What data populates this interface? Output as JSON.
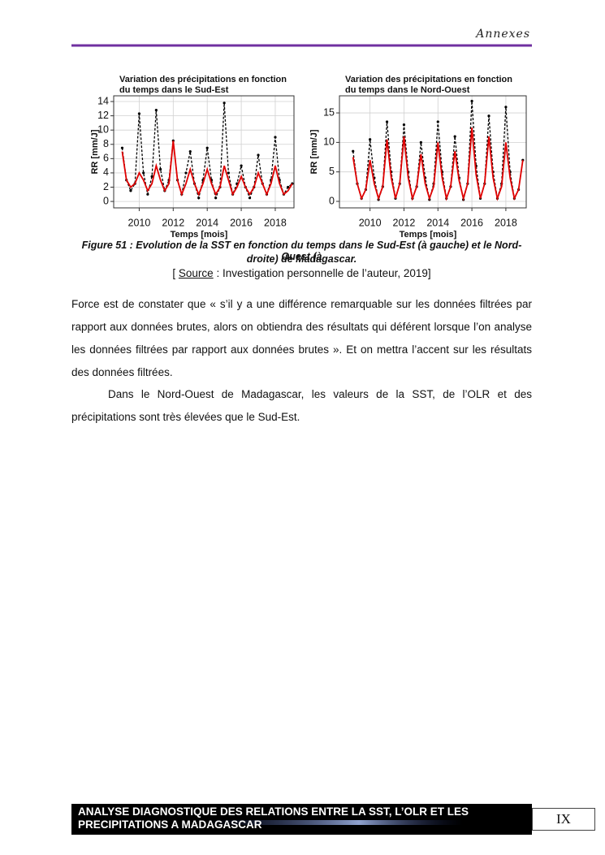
{
  "header": {
    "title": "Annexes"
  },
  "chart_data": [
    {
      "type": "line",
      "title": [
        "Variation des précipitations en fonction",
        "du temps dans le Sud-Est"
      ],
      "xlabel": "Temps [mois]",
      "ylabel": "RR [mm/J]",
      "x": [
        2009,
        2009.25,
        2009.5,
        2009.75,
        2010,
        2010.25,
        2010.5,
        2010.75,
        2011,
        2011.25,
        2011.5,
        2011.75,
        2012,
        2012.25,
        2012.5,
        2012.75,
        2013,
        2013.25,
        2013.5,
        2013.75,
        2014,
        2014.25,
        2014.5,
        2014.75,
        2015,
        2015.25,
        2015.5,
        2015.75,
        2016,
        2016.25,
        2016.5,
        2016.75,
        2017,
        2017.25,
        2017.5,
        2017.75,
        2018,
        2018.25,
        2018.5,
        2018.75,
        2019
      ],
      "series": [
        {
          "color": "#000000",
          "dashed": true,
          "marker": true,
          "values": [
            7.5,
            3,
            1.5,
            2.5,
            12.3,
            4,
            1,
            3.5,
            12.8,
            4.5,
            1.5,
            3,
            8.5,
            3,
            1,
            4,
            7,
            2.5,
            0.5,
            3,
            7.5,
            3,
            0.5,
            2,
            13.8,
            4,
            1,
            2.5,
            5,
            2,
            0.5,
            2,
            6.5,
            2.5,
            1,
            3,
            9,
            3,
            1,
            2,
            2.5
          ]
        },
        {
          "color": "#e00000",
          "dashed": false,
          "marker": false,
          "values": [
            7,
            3,
            2,
            2.5,
            4,
            3,
            1.5,
            2.5,
            5,
            3,
            1.5,
            2.5,
            8.5,
            3,
            1,
            2.5,
            4.5,
            2.5,
            1,
            2.5,
            4.5,
            2.5,
            1,
            2,
            5,
            3,
            1,
            2,
            3.5,
            2,
            1,
            2,
            4,
            2.5,
            1,
            2.5,
            5,
            2.5,
            1,
            1.5,
            2.5
          ]
        }
      ],
      "xlim": [
        2008.5,
        2019.1
      ],
      "xticks": [
        2010,
        2012,
        2014,
        2016,
        2018
      ],
      "ylim": [
        -0.9,
        14.8
      ],
      "yticks": [
        0,
        2,
        4,
        6,
        8,
        10,
        12,
        14
      ],
      "grid": true
    },
    {
      "type": "line",
      "title": [
        "Variation des précipitations en fonction",
        "du temps dans le Nord-Ouest"
      ],
      "xlabel": "Temps [mois]",
      "ylabel": "RR [mm/J]",
      "x": [
        2009,
        2009.25,
        2009.5,
        2009.75,
        2010,
        2010.25,
        2010.5,
        2010.75,
        2011,
        2011.25,
        2011.5,
        2011.75,
        2012,
        2012.25,
        2012.5,
        2012.75,
        2013,
        2013.25,
        2013.5,
        2013.75,
        2014,
        2014.25,
        2014.5,
        2014.75,
        2015,
        2015.25,
        2015.5,
        2015.75,
        2016,
        2016.25,
        2016.5,
        2016.75,
        2017,
        2017.25,
        2017.5,
        2017.75,
        2018,
        2018.25,
        2018.5,
        2018.75,
        2019
      ],
      "series": [
        {
          "color": "#000000",
          "dashed": true,
          "marker": true,
          "values": [
            8.5,
            3,
            0.5,
            2,
            10.5,
            4,
            0.3,
            2.5,
            13.5,
            5,
            0.5,
            3,
            13,
            5,
            0.5,
            2.5,
            10,
            4,
            0.3,
            3,
            13.5,
            5,
            0.5,
            2.5,
            11,
            4,
            0.3,
            3,
            17,
            6,
            0.5,
            3,
            14.5,
            5,
            0.5,
            3,
            16,
            5,
            0.5,
            2,
            7
          ]
        },
        {
          "color": "#e00000",
          "dashed": false,
          "marker": false,
          "values": [
            7.5,
            3,
            0.5,
            2,
            7,
            3,
            0.5,
            2.5,
            10.5,
            4,
            0.5,
            3,
            11,
            4,
            0.5,
            2.5,
            8,
            3,
            0.5,
            2.5,
            10,
            4,
            0.5,
            2.5,
            8.5,
            3.5,
            0.5,
            3,
            12.5,
            4.5,
            0.5,
            3,
            11,
            4,
            0.5,
            2.5,
            10,
            4,
            0.5,
            2,
            7
          ]
        }
      ],
      "xlim": [
        2008.2,
        2019.2
      ],
      "xticks": [
        2010,
        2012,
        2014,
        2016,
        2018
      ],
      "ylim": [
        -1.1,
        17.9
      ],
      "yticks": [
        0,
        5,
        10,
        15
      ],
      "grid": true
    }
  ],
  "caption": [
    "Figure 51 : Evolution de la SST en fonction du temps dans le Sud-Est (à gauche) et le Nord-Ouest (à",
    "droite) de Madagascar."
  ],
  "source": {
    "open": "[",
    "label": "Source",
    "text": ": Investigation personnelle de l’auteur, 2019]"
  },
  "paragraphs": [
    "Force est de constater que « s’il y a une différence remarquable sur les données filtrées par rapport aux données brutes, alors on obtiendra des résultats qui déférent lorsque l’on analyse les données filtrées par rapport aux données brutes ». Et on mettra l’accent sur les résultats des données filtrées.",
    "Dans le Nord-Ouest de Madagascar, les valeurs de la SST, de l’OLR et des précipitations sont très élevées que le Sud-Est."
  ],
  "footer": {
    "title": [
      "ANALYSE DIAGNOSTIQUE DES RELATIONS ENTRE LA SST, L’OLR ET LES",
      "PRECIPITATIONS A MADAGASCAR"
    ],
    "page": "IX"
  }
}
